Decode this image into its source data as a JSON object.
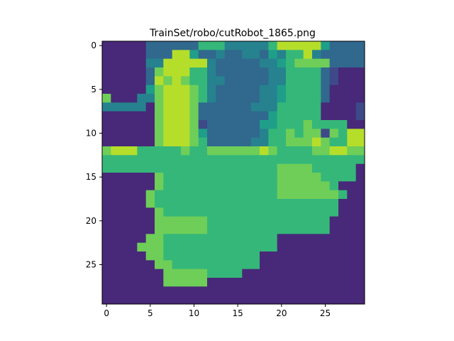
{
  "chart_data": {
    "type": "heatmap",
    "title": "TrainSet/robo/cutRobot_1865.png",
    "xlabel": "",
    "ylabel": "",
    "rows": 30,
    "cols": 30,
    "x_ticks": [
      0,
      5,
      10,
      15,
      20,
      25
    ],
    "y_ticks": [
      0,
      5,
      10,
      15,
      20,
      25
    ],
    "x_tick_labels": [
      "0",
      "5",
      "10",
      "15",
      "20",
      "25"
    ],
    "y_tick_labels": [
      "0",
      "5",
      "10",
      "15",
      "20",
      "25"
    ],
    "colormap": "viridis",
    "vmin": 0,
    "vmax": 9,
    "values_note": "",
    "values": [
      "111113333336664444468888853333",
      "111113338853343344354668433333",
      "111114488888433333445677773333",
      "111113788866433333344666632111",
      "111113878766443333344666632111",
      "111115788876433333445666631111",
      "711144788876433333445666631111",
      "444441788873333334446666611112",
      "111111788873333333356666611112",
      "111111788872333333556667666611",
      "111111788875333333466767727688",
      "111111788876333334466777876688",
      "788866666766777777876666778877",
      "666666666666666666666666666666",
      "666666666666666666667777666661",
      "111111766666666666667777766661",
      "111111766666666666667777776111",
      "111117666666666666667777777611",
      "111117666666666666666666666111",
      "111111766666666666666666666111",
      "111111777777666666666666661111",
      "111111777777666666666666661111",
      "111117766666666666661111111111",
      "111177766666666666661111111111",
      "111117766666666666111111111111",
      "111111776666666666111111111111",
      "111111177777666611111111111111",
      "111111177777111111111111111111",
      "111111111111111111111111111111",
      "111111111111111111111111111111"
    ]
  }
}
